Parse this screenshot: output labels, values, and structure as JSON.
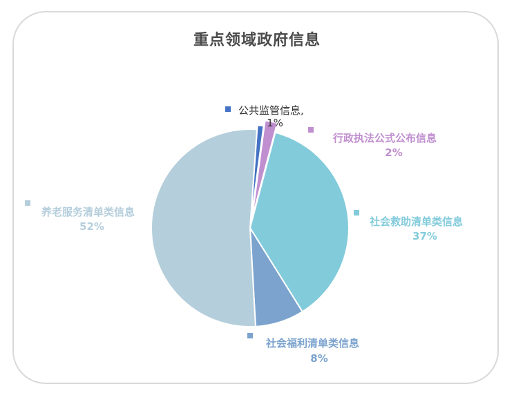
{
  "chart_data": {
    "type": "pie",
    "title": "重点领域政府信息",
    "slices": [
      {
        "name": "公共监管信息",
        "percent_label": "1%",
        "value": 1,
        "color": "#4472c4"
      },
      {
        "name": "行政执法公式公布信息",
        "percent_label": "2%",
        "value": 2,
        "color": "#c08fcf"
      },
      {
        "name": "社会救助清单类信息",
        "percent_label": "37%",
        "value": 37,
        "color": "#82cbdb"
      },
      {
        "name": "社会福利清单类信息",
        "percent_label": "8%",
        "value": 8,
        "color": "#7ba3ce"
      },
      {
        "name": "养老服务清单类信息",
        "percent_label": "52%",
        "value": 52,
        "color": "#b5cedc"
      }
    ]
  }
}
